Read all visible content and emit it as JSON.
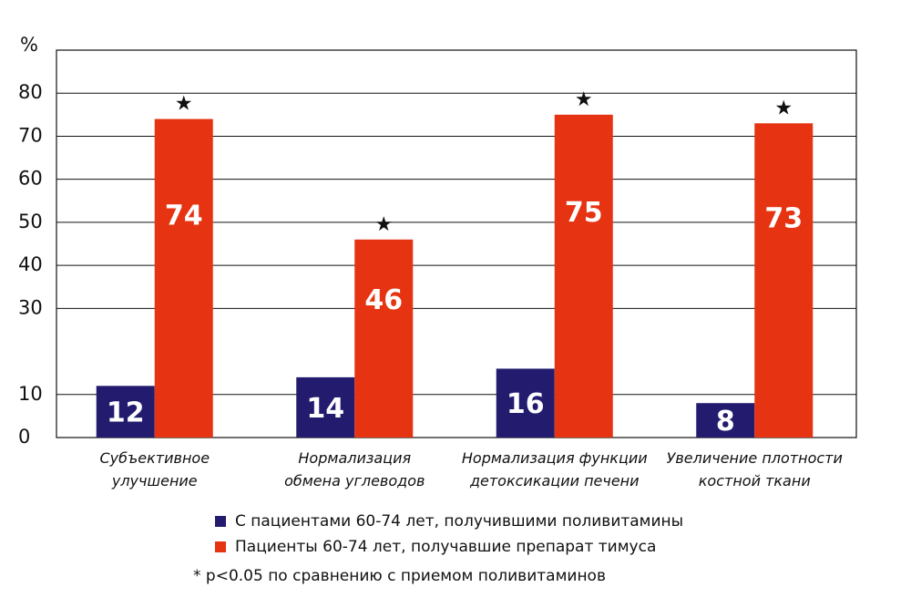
{
  "chart_data": {
    "type": "bar",
    "y_unit_label": "%",
    "y_ticks": [
      "0",
      "10",
      "30",
      "40",
      "50",
      "60",
      "70",
      "80"
    ],
    "ylim": [
      0,
      90
    ],
    "grid": true,
    "categories": [
      [
        "Субъективное",
        "улучшение"
      ],
      [
        "Нормализация",
        "обмена углеводов"
      ],
      [
        "Нормализация функции",
        "детоксикации печени"
      ],
      [
        "Увеличение плотности",
        "костной ткани"
      ]
    ],
    "series": [
      {
        "name": "С пациентами 60-74 лет, получившими поливитамины",
        "color": "#231c6e",
        "values": [
          12,
          14,
          16,
          8
        ],
        "labels": [
          "12",
          "14",
          "16",
          "8"
        ]
      },
      {
        "name": "Пациенты 60-74 лет, получавшие препарат тимуса",
        "color": "#e63312",
        "values": [
          74,
          46,
          75,
          73
        ],
        "labels": [
          "74",
          "46",
          "75",
          "73"
        ]
      }
    ],
    "significance_marker": "★",
    "significant": [
      true,
      true,
      true,
      true
    ]
  },
  "legend": {
    "items": [
      {
        "label": "С пациентами 60-74 лет, получившими поливитамины",
        "color": "#231c6e"
      },
      {
        "label": "Пациенты 60-74 лет, получавшие препарат тимуса",
        "color": "#e63312"
      }
    ]
  },
  "footnote": "* p<0.05 по сравнению с приемом поливитаминов"
}
